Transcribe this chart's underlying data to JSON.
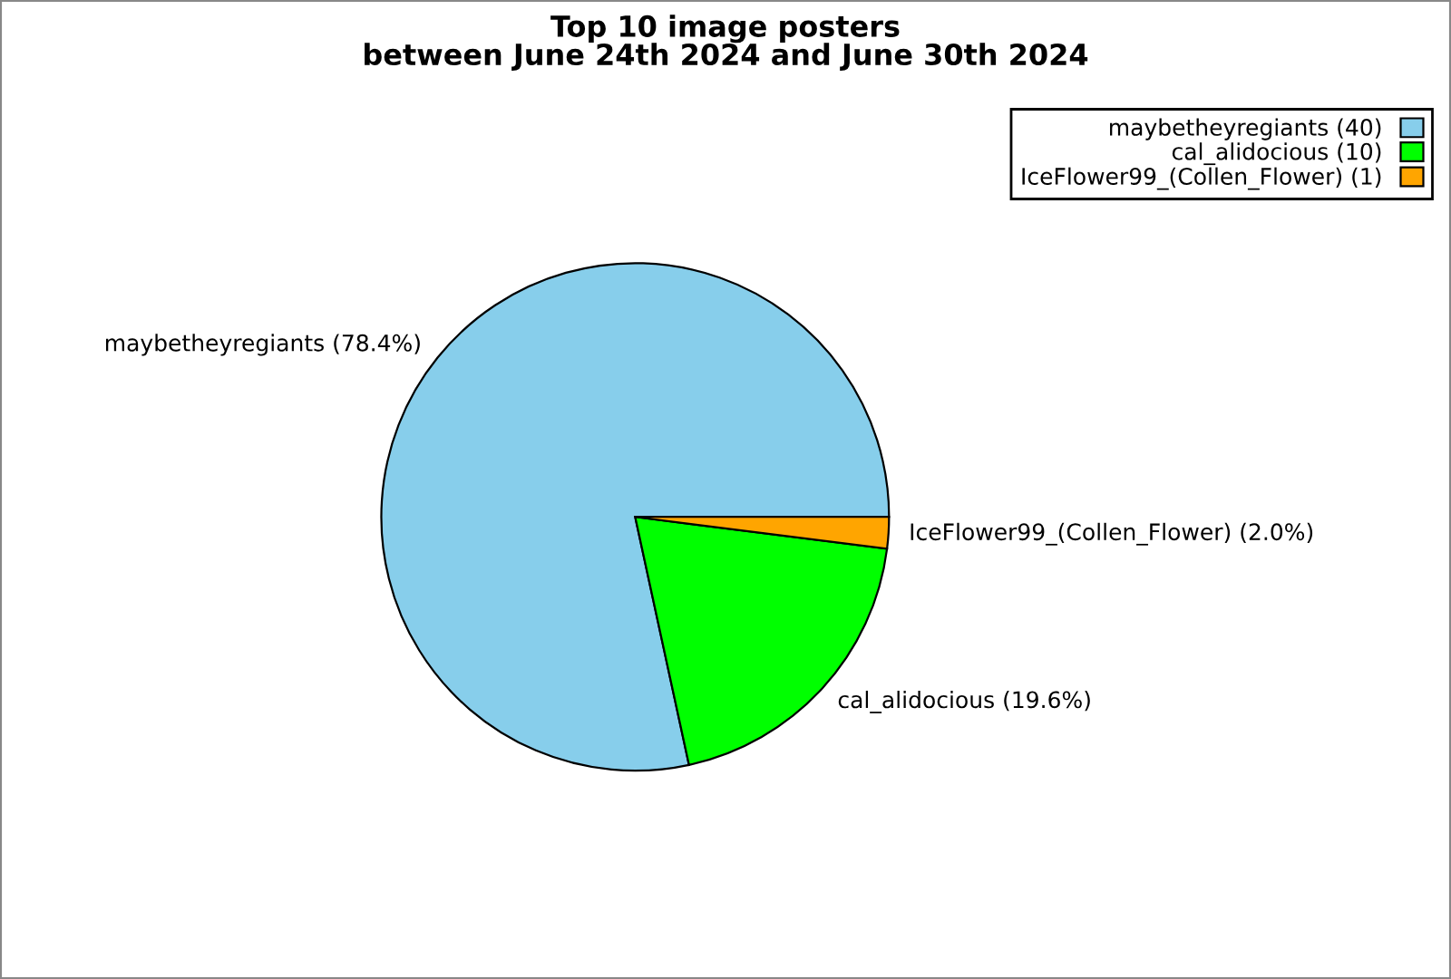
{
  "chart_data": {
    "type": "pie",
    "title": "Top 10 image posters\nbetween June 24th 2024 and June 30th 2024",
    "categories": [
      "maybetheyregiants (40)",
      "cal_alidocious (10)",
      "IceFlower99_(Collen_Flower) (1)"
    ],
    "values": [
      78.4,
      19.6,
      2.0
    ],
    "value_labels": [
      "maybetheyregiants (78.4%)",
      "cal_alidocious (19.6%)",
      "IceFlower99_(Collen_Flower) (2.0%)"
    ],
    "colors": [
      "#87ceeb",
      "#00ff00",
      "#ffa500"
    ],
    "legend": "top right"
  }
}
